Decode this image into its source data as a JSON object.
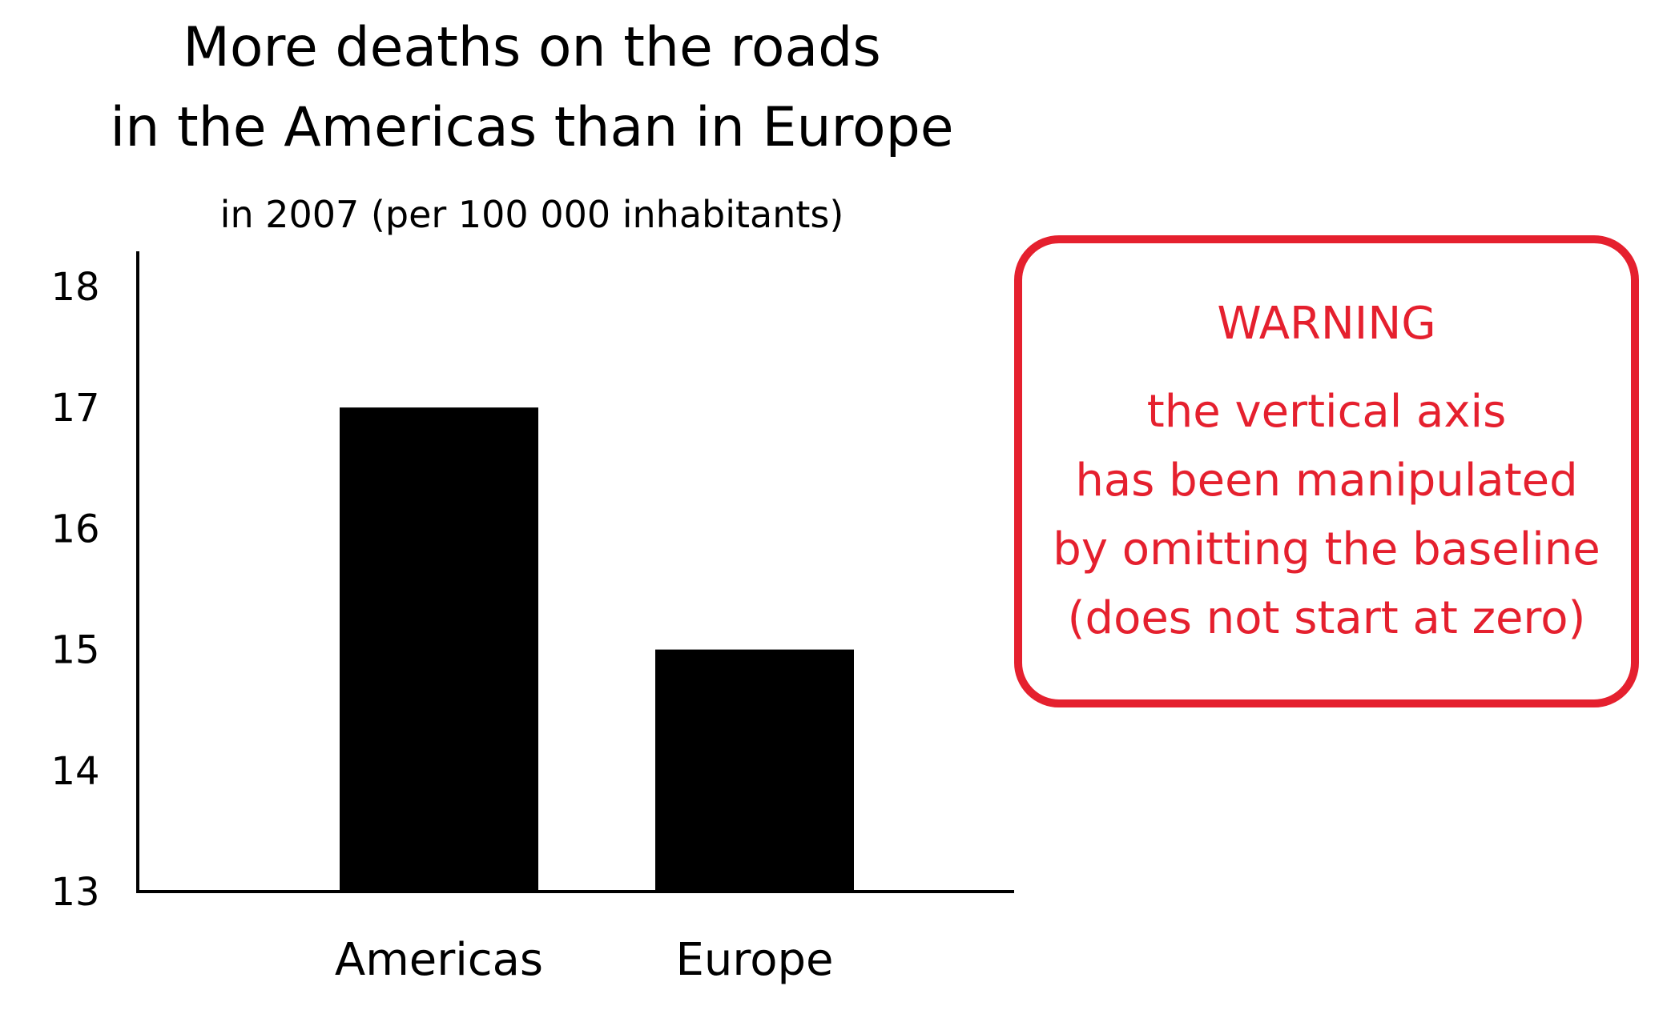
{
  "chart_data": {
    "type": "bar",
    "title_lines": [
      "More deaths on the roads",
      "in the Americas than in Europe"
    ],
    "subtitle": "in 2007 (per 100 000 inhabitants)",
    "categories": [
      "Americas",
      "Europe"
    ],
    "values": [
      17,
      15
    ],
    "ylim": [
      13,
      18
    ],
    "yticks": [
      13,
      14,
      15,
      16,
      17,
      18
    ],
    "xlabel": "",
    "ylabel": "",
    "grid": false,
    "bar_color": "#000000"
  },
  "warning": {
    "title": "WARNING",
    "lines": [
      "the vertical axis",
      "has been manipulated",
      "by omitting the baseline",
      "(does not start at zero)"
    ],
    "color": "#e5202e"
  }
}
